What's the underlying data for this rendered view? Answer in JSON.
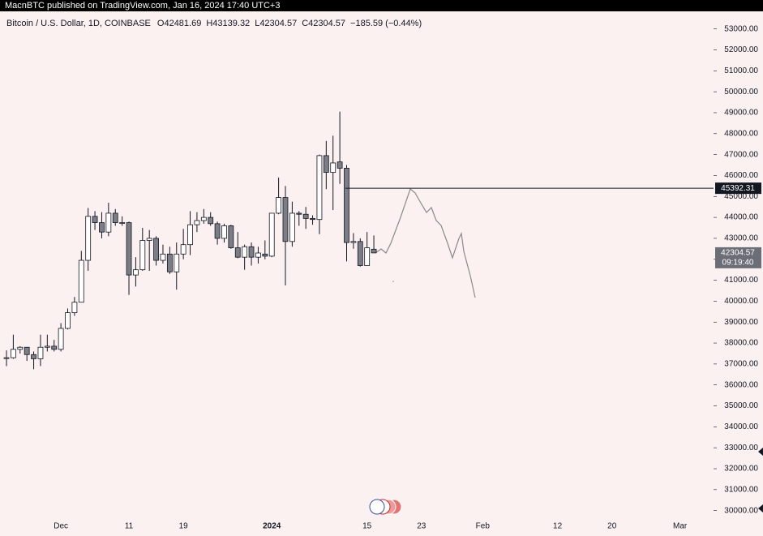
{
  "header": {
    "text": "MacnBTC published on TradingView.com, Jan 16, 2024 17:40 UTC+3"
  },
  "chart_data": {
    "type": "candlestick",
    "symbol": "Bitcoin / U.S. Dollar, 1D, COINBASE",
    "ohlc_prefixes": [
      "O",
      "H",
      "L",
      "C"
    ],
    "change": "−185.59 (−0.44%)",
    "categories": [
      null,
      null,
      null,
      null,
      null,
      null,
      null,
      null,
      "Dec",
      null,
      null,
      null,
      null,
      null,
      null,
      null,
      null,
      null,
      "11",
      null,
      null,
      null,
      null,
      null,
      null,
      null,
      "19",
      null,
      null,
      null,
      null,
      null,
      null,
      null,
      null,
      null,
      null,
      null,
      null,
      "2024",
      null,
      null,
      null,
      null,
      null,
      null,
      null,
      null,
      null,
      null,
      null,
      null,
      null,
      "15",
      null,
      null,
      null,
      null,
      null,
      null,
      null,
      "23",
      null,
      null,
      null,
      null,
      null,
      null,
      null,
      null,
      "Feb",
      null,
      null,
      null,
      null,
      null,
      null,
      null,
      null,
      null,
      null,
      "12",
      null,
      null,
      null,
      null,
      null,
      null,
      null,
      "20",
      null,
      null,
      null,
      null,
      null,
      null,
      null,
      null,
      null,
      "Mar",
      null,
      null,
      null,
      null
    ],
    "open": [
      37300,
      37300,
      37700,
      37800,
      37450,
      37250,
      37800,
      37850,
      37700,
      38700,
      39450,
      39950,
      41950,
      44050,
      43750,
      43300,
      44200,
      43750,
      43750,
      41250,
      41500,
      42900,
      43000,
      41950,
      42250,
      41400,
      42250,
      42700,
      43650,
      43850,
      44000,
      43700,
      43000,
      43600,
      42550,
      42100,
      42600,
      42100,
      42250,
      42150,
      44200,
      44950,
      42850,
      44200,
      44150,
      43950,
      43900,
      46950,
      46150,
      46650,
      46350,
      42800,
      42850,
      41700,
      42481.69,
      null,
      null,
      null,
      null,
      null,
      null,
      null,
      null,
      null,
      null,
      null,
      null,
      null,
      null,
      null,
      null,
      null,
      null,
      null,
      null,
      null,
      null,
      null,
      null,
      null,
      null,
      null,
      null,
      null,
      null,
      null,
      null,
      null,
      null,
      null,
      null,
      null,
      null,
      null,
      null,
      null,
      null,
      null,
      null,
      null,
      null,
      null,
      null,
      null
    ],
    "high": [
      37650,
      38400,
      37850,
      37800,
      37600,
      38400,
      38400,
      38150,
      38950,
      39650,
      40200,
      42400,
      44450,
      44300,
      44250,
      44700,
      44400,
      44050,
      43800,
      42100,
      43500,
      43400,
      43100,
      42700,
      42600,
      42800,
      43450,
      44300,
      44250,
      44400,
      44250,
      43800,
      43700,
      43650,
      43300,
      42700,
      42800,
      42600,
      42900,
      44200,
      45900,
      45500,
      44750,
      44300,
      44500,
      44100,
      47000,
      47650,
      47900,
      49050,
      46500,
      43250,
      43000,
      43300,
      43139.32,
      null,
      null,
      null,
      null,
      null,
      null,
      null,
      null,
      null,
      null,
      null,
      null,
      null,
      null,
      null,
      null,
      null,
      null,
      null,
      null,
      null,
      null,
      null,
      null,
      null,
      null,
      null,
      null,
      null,
      null,
      null,
      null,
      null,
      null,
      null,
      null,
      null,
      null,
      null,
      null,
      null,
      null,
      null,
      null,
      null,
      null,
      null,
      null,
      null
    ],
    "low": [
      36900,
      37250,
      37500,
      37150,
      36750,
      36900,
      37600,
      37600,
      37600,
      38650,
      39300,
      39950,
      41450,
      43400,
      43000,
      43100,
      43600,
      43600,
      40300,
      40700,
      41450,
      41450,
      41700,
      41800,
      41300,
      40550,
      42000,
      42200,
      43300,
      43700,
      43600,
      42700,
      42800,
      42500,
      42050,
      41500,
      41700,
      41800,
      42000,
      42100,
      44150,
      40750,
      42600,
      43600,
      43450,
      43650,
      43200,
      45350,
      44350,
      45600,
      41900,
      42500,
      41650,
      41700,
      42304.57,
      null,
      null,
      null,
      null,
      null,
      null,
      null,
      null,
      null,
      null,
      null,
      null,
      null,
      null,
      null,
      null,
      null,
      null,
      null,
      null,
      null,
      null,
      null,
      null,
      null,
      null,
      null,
      null,
      null,
      null,
      null,
      null,
      null,
      null,
      null,
      null,
      null,
      null,
      null,
      null,
      null,
      null,
      null,
      null,
      null,
      null,
      null,
      null,
      null
    ],
    "close": [
      37300,
      37700,
      37800,
      37450,
      37250,
      37800,
      37850,
      37700,
      38700,
      39450,
      39950,
      41950,
      44050,
      43750,
      43300,
      44200,
      43750,
      43750,
      41250,
      41500,
      42900,
      43000,
      41950,
      42250,
      41400,
      42250,
      42700,
      43650,
      43850,
      44000,
      43700,
      43000,
      43600,
      42550,
      42100,
      42600,
      42100,
      42300,
      42150,
      44200,
      44950,
      42850,
      44200,
      44150,
      43950,
      43900,
      46950,
      46150,
      46600,
      46350,
      42800,
      42850,
      41700,
      42550,
      42304.57,
      null,
      null,
      null,
      null,
      null,
      null,
      null,
      null,
      null,
      null,
      null,
      null,
      null,
      null,
      null,
      null,
      null,
      null,
      null,
      null,
      null,
      null,
      null,
      null,
      null,
      null,
      null,
      null,
      null,
      null,
      null,
      null,
      null,
      null,
      null,
      null,
      null,
      null,
      null,
      null,
      null,
      null,
      null,
      null,
      null,
      null,
      null,
      null,
      null
    ],
    "up_color": "#ffffff",
    "down_color": "#7b7e86",
    "wick_color": "#131722",
    "ylim": [
      29600,
      53800
    ],
    "yticks": [
      {
        "value": 30000,
        "label": "30000.00"
      },
      {
        "value": 31000,
        "label": "31000.00"
      },
      {
        "value": 32000,
        "label": "32000.00"
      },
      {
        "value": 33000,
        "label": "33000.00"
      },
      {
        "value": 34000,
        "label": "34000.00"
      },
      {
        "value": 35000,
        "label": "35000.00"
      },
      {
        "value": 36000,
        "label": "36000.00"
      },
      {
        "value": 37000,
        "label": "37000.00"
      },
      {
        "value": 38000,
        "label": "38000.00"
      },
      {
        "value": 39000,
        "label": "39000.00"
      },
      {
        "value": 40000,
        "label": "40000.00"
      },
      {
        "value": 41000,
        "label": "41000.00"
      },
      {
        "value": 42000,
        "label": "42000.00"
      },
      {
        "value": 43000,
        "label": "43000.00"
      },
      {
        "value": 44000,
        "label": "44000.00"
      },
      {
        "value": 45000,
        "label": "45000.00"
      },
      {
        "value": 46000,
        "label": "46000.00"
      },
      {
        "value": 47000,
        "label": "47000.00"
      },
      {
        "value": 48000,
        "label": "48000.00"
      },
      {
        "value": 49000,
        "label": "49000.00"
      },
      {
        "value": 50000,
        "label": "50000.00"
      },
      {
        "value": 51000,
        "label": "51000.00"
      },
      {
        "value": 52000,
        "label": "52000.00"
      },
      {
        "value": 53000,
        "label": "53000.00"
      }
    ],
    "hline": 45392.31,
    "countdown": "09:19:40"
  }
}
